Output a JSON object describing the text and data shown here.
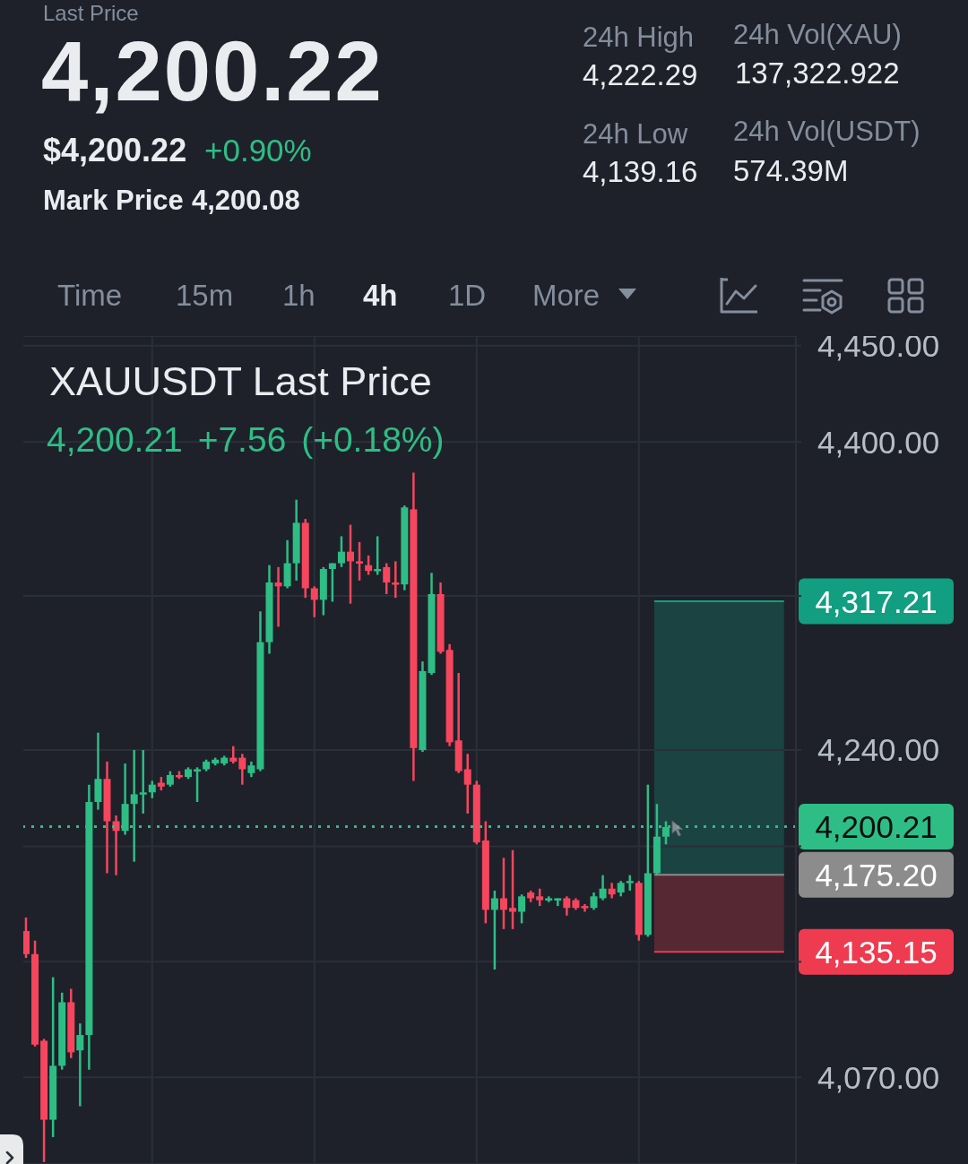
{
  "chart_data": [
    {
      "type": "other",
      "annotations": [
        "Last Price",
        "4,200.22",
        "$4,200.22",
        "+0.90%",
        "Mark Price",
        "4,200.08",
        "24h High",
        "4,222.29",
        "24h Low",
        "4,139.16",
        "24h Vol(XAU)",
        "137,322.922",
        "24h Vol(USDT)",
        "574.39M",
        "Time",
        "15m",
        "1h",
        "4h",
        "1D",
        "More"
      ]
    },
    {
      "type": "candlestick",
      "title": "XAUUSDT Last Price",
      "subtitle": "4,200.21 +7.56 (+0.18%)",
      "categories": [
        null,
        null,
        null,
        null,
        null,
        null,
        null,
        null,
        null,
        null,
        null,
        null,
        null,
        null,
        null,
        null,
        null,
        null,
        null,
        null,
        null,
        null,
        null,
        null,
        null,
        null,
        null,
        null,
        null,
        null,
        null,
        null,
        null,
        null,
        null,
        null,
        null,
        null,
        null,
        null,
        null,
        null,
        null,
        null,
        null,
        null,
        null,
        null,
        null,
        null,
        null,
        null,
        null,
        null,
        null,
        null,
        null,
        null,
        null,
        null,
        null,
        null,
        null,
        null,
        null,
        null,
        null,
        null,
        null,
        null,
        null,
        null
      ],
      "ohlc": [
        [
          4146,
          4153,
          4132,
          4134
        ],
        [
          4134,
          4141,
          4086,
          4087
        ],
        [
          4089,
          4090,
          4026,
          4048
        ],
        [
          4048,
          4122,
          4039,
          4076
        ],
        [
          4076,
          4114,
          4074,
          4109
        ],
        [
          4109,
          4116,
          4080,
          4083
        ],
        [
          4084,
          4098,
          4055,
          4092
        ],
        [
          4092,
          4222,
          4074,
          4213
        ],
        [
          4213,
          4249,
          4209,
          4225
        ],
        [
          4225,
          4234,
          4176,
          4203
        ],
        [
          4203,
          4206,
          4175,
          4198
        ],
        [
          4198,
          4233,
          4196,
          4212
        ],
        [
          4212,
          4240,
          4182,
          4217
        ],
        [
          4217,
          4240,
          4207,
          4218
        ],
        [
          4218,
          4224,
          4215,
          4222
        ],
        [
          4223,
          4226,
          4219,
          4221
        ],
        [
          4222,
          4229,
          4221,
          4227
        ],
        [
          4227,
          4229,
          4225,
          4226
        ],
        [
          4226,
          4231,
          4225,
          4230
        ],
        [
          4229,
          4231,
          4213,
          4230
        ],
        [
          4230,
          4235,
          4229,
          4234
        ],
        [
          4233,
          4236,
          4232,
          4235
        ],
        [
          4233,
          4237,
          4232,
          4236
        ],
        [
          4236,
          4242,
          4233,
          4234
        ],
        [
          4236,
          4238,
          4222,
          4230
        ],
        [
          4228,
          4234,
          4226,
          4232
        ],
        [
          4230,
          4312,
          4229,
          4296
        ],
        [
          4296,
          4336,
          4290,
          4327
        ],
        [
          4327,
          4335,
          4304,
          4325
        ],
        [
          4325,
          4349,
          4324,
          4337
        ],
        [
          4337,
          4370,
          4328,
          4358
        ],
        [
          4358,
          4360,
          4319,
          4324
        ],
        [
          4324,
          4325,
          4309,
          4318
        ],
        [
          4318,
          4335,
          4310,
          4334
        ],
        [
          4334,
          4337,
          4317,
          4337
        ],
        [
          4337,
          4351,
          4335,
          4343
        ],
        [
          4343,
          4357,
          4316,
          4338
        ],
        [
          4338,
          4348,
          4328,
          4337
        ],
        [
          4336,
          4341,
          4331,
          4333
        ],
        [
          4333,
          4351,
          4331,
          4334
        ],
        [
          4335,
          4337,
          4321,
          4327
        ],
        [
          4327,
          4338,
          4319,
          4326
        ],
        [
          4326,
          4367,
          4323,
          4366
        ],
        [
          4365,
          4384,
          4224,
          4241
        ],
        [
          4240,
          4286,
          4239,
          4281
        ],
        [
          4280,
          4332,
          4279,
          4321
        ],
        [
          4321,
          4327,
          4290,
          4291
        ],
        [
          4292,
          4295,
          4242,
          4244
        ],
        [
          4245,
          4280,
          4228,
          4229
        ],
        [
          4230,
          4238,
          4207,
          4222
        ],
        [
          4222,
          4224,
          4191,
          4192
        ],
        [
          4193,
          4203,
          4150,
          4157
        ],
        [
          4157,
          4167,
          4126,
          4163
        ],
        [
          4163,
          4184,
          4147,
          4157
        ],
        [
          4158,
          4188,
          4147,
          4156
        ],
        [
          4156,
          4165,
          4150,
          4164
        ],
        [
          4166,
          4167,
          4161,
          4163
        ],
        [
          4164,
          4168,
          4159,
          4162
        ],
        [
          4162,
          4164,
          4161,
          4163
        ],
        [
          4162,
          4163,
          4159,
          4163
        ],
        [
          4163,
          4164,
          4154,
          4158
        ],
        [
          4162,
          4163,
          4157,
          4158
        ],
        [
          4159,
          4160,
          4156,
          4158
        ],
        [
          4158,
          4166,
          4157,
          4164
        ],
        [
          4163,
          4175,
          4162,
          4168
        ],
        [
          4168,
          4171,
          4163,
          4165
        ],
        [
          4166,
          4172,
          4164,
          4171
        ],
        [
          4171,
          4175,
          4167,
          4172
        ],
        [
          4171,
          4172,
          4141,
          4144
        ],
        [
          4144,
          4222,
          4143,
          4176
        ],
        [
          4176,
          4212,
          4175,
          4195
        ],
        [
          4195,
          4203,
          4191,
          4200
        ]
      ],
      "colors": [
        "#f6465d",
        "#f6465d",
        "#f6465d",
        "#2ebd85",
        "#2ebd85",
        "#f6465d",
        "#2ebd85",
        "#2ebd85",
        "#2ebd85",
        "#f6465d",
        "#f6465d",
        "#2ebd85",
        "#2ebd85",
        "#2ebd85",
        "#2ebd85",
        "#f6465d",
        "#2ebd85",
        "#f6465d",
        "#2ebd85",
        "#2ebd85",
        "#2ebd85",
        "#2ebd85",
        "#2ebd85",
        "#f6465d",
        "#f6465d",
        "#2ebd85",
        "#2ebd85",
        "#2ebd85",
        "#f6465d",
        "#2ebd85",
        "#2ebd85",
        "#f6465d",
        "#f6465d",
        "#2ebd85",
        "#2ebd85",
        "#2ebd85",
        "#f6465d",
        "#f6465d",
        "#f6465d",
        "#2ebd85",
        "#f6465d",
        "#f6465d",
        "#2ebd85",
        "#f6465d",
        "#2ebd85",
        "#2ebd85",
        "#f6465d",
        "#f6465d",
        "#f6465d",
        "#f6465d",
        "#f6465d",
        "#f6465d",
        "#2ebd85",
        "#f6465d",
        "#f6465d",
        "#2ebd85",
        "#f6465d",
        "#f6465d",
        "#2ebd85",
        "#2ebd85",
        "#f6465d",
        "#f6465d",
        "#f6465d",
        "#2ebd85",
        "#2ebd85",
        "#f6465d",
        "#2ebd85",
        "#2ebd85",
        "#f6465d",
        "#2ebd85",
        "#2ebd85",
        "#2ebd85"
      ],
      "ylim": [
        4025,
        4455
      ],
      "yticks": [
        {
          "value": 4450,
          "label": "4,450.00"
        },
        {
          "value": 4400,
          "label": "4,400.00"
        },
        {
          "value": 4320,
          "label": null
        },
        {
          "value": 4240,
          "label": "4,240.00"
        },
        {
          "value": 4190,
          "label": null
        },
        {
          "value": 4130,
          "label": null
        },
        {
          "value": 4070,
          "label": "4,070.00"
        }
      ],
      "grid": true,
      "tick_labels": "y",
      "ref_lines": [
        {
          "axis": "y",
          "value": 4317.21,
          "label": "4,317.21",
          "color": "#129e81",
          "line_style": "solid"
        },
        {
          "axis": "y",
          "value": 4200.21,
          "label": "4,200.21",
          "color": "#2ebd85",
          "line_style": "dotted"
        },
        {
          "axis": "y",
          "value": 4175.2,
          "label": "4,175.20",
          "color": "#8c8c8c",
          "line_style": "solid"
        },
        {
          "axis": "y",
          "value": 4135.15,
          "label": "4,135.15",
          "color": "#ef3b4f",
          "line_style": "solid"
        }
      ]
    }
  ]
}
